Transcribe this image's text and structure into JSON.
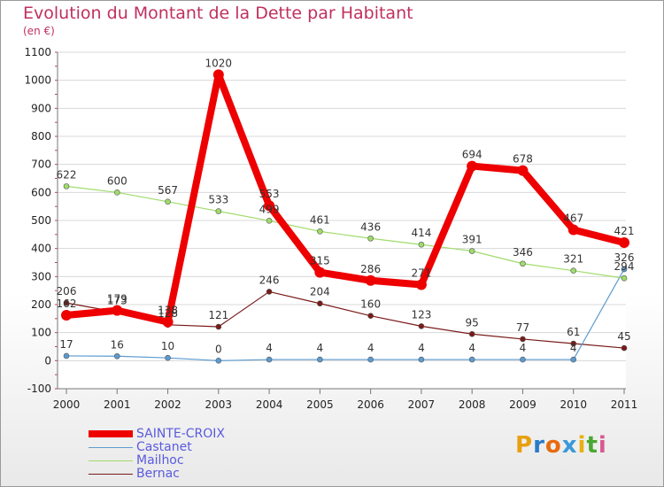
{
  "header": {
    "title": "Evolution du Montant de la Dette par Habitant",
    "subtitle": "(en €)"
  },
  "logo": {
    "text": "Proxiti",
    "letters": [
      "P",
      "r",
      "o",
      "x",
      "i",
      "t",
      "i"
    ],
    "colors": [
      "#e8a010",
      "#2a7ac8",
      "#e86a10",
      "#3a9ad8",
      "#e8b010",
      "#4aa830",
      "#d85a90"
    ]
  },
  "chart_data": {
    "type": "line",
    "title": "Evolution du Montant de la Dette par Habitant",
    "ylabel": "(en €)",
    "xlabel": "",
    "ylim": [
      -100,
      1100
    ],
    "yticks": [
      "1100",
      "1000",
      "900",
      "800",
      "700",
      "600",
      "500",
      "400",
      "300",
      "200",
      "100",
      "0",
      "-100"
    ],
    "categories": [
      "2000",
      "2001",
      "2002",
      "2003",
      "2004",
      "2005",
      "2006",
      "2007",
      "2008",
      "2009",
      "2010",
      "2011"
    ],
    "series": [
      {
        "name": "Bernac",
        "color": "#7a1a1a",
        "width": 1.2,
        "values": [
          206,
          173,
          128,
          121,
          246,
          204,
          160,
          123,
          95,
          77,
          61,
          45
        ],
        "labels": [
          "206",
          "173",
          "128",
          "121",
          "246",
          "204",
          "160",
          "123",
          "95",
          "77",
          "61",
          "45"
        ]
      },
      {
        "name": "Castanet",
        "color": "#5b9bd0",
        "width": 1.2,
        "values": [
          17,
          16,
          10,
          0,
          4,
          4,
          4,
          4,
          4,
          4,
          4,
          326
        ],
        "labels": [
          "17",
          "16",
          "10",
          "0",
          "4",
          "4",
          "4",
          "4",
          "4",
          "4",
          "4",
          "326"
        ]
      },
      {
        "name": "Mailhoc",
        "color": "#9fdc6a",
        "width": 1.2,
        "values": [
          622,
          600,
          567,
          533,
          499,
          461,
          436,
          414,
          391,
          346,
          321,
          294
        ],
        "labels": [
          "622",
          "600",
          "567",
          "533",
          "499",
          "461",
          "436",
          "414",
          "391",
          "346",
          "321",
          "294"
        ]
      },
      {
        "name": "SAINTE-CROIX",
        "color": "#ee0000",
        "width": 8,
        "values": [
          162,
          179,
          138,
          1020,
          553,
          315,
          286,
          271,
          694,
          678,
          467,
          421
        ],
        "labels": [
          "162",
          "179",
          "138",
          "1020",
          "553",
          "315",
          "286",
          "271",
          "694",
          "678",
          "467",
          "421"
        ]
      }
    ],
    "legend_order": [
      "SAINTE-CROIX",
      "Castanet",
      "Mailhoc",
      "Bernac"
    ],
    "legend_position": "bottom-left"
  }
}
